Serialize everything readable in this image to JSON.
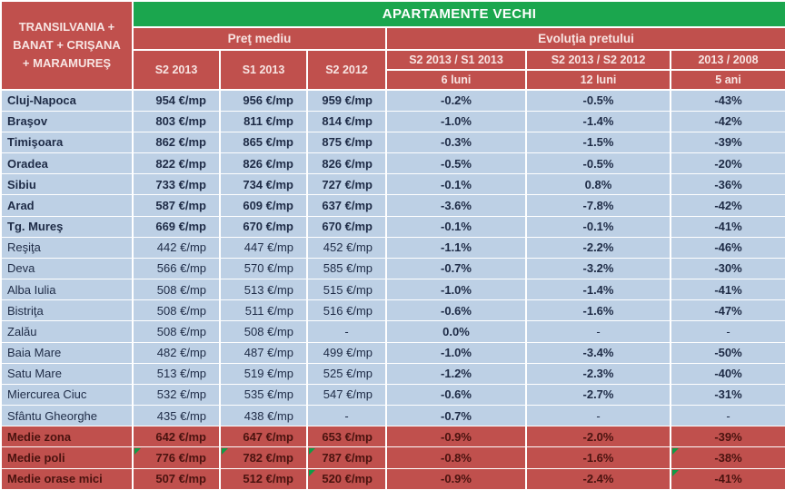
{
  "colors": {
    "header_red": "#C0504D",
    "title_green": "#1BA64E",
    "row_blue": "#BDD0E5",
    "summary_text": "#4A130F",
    "comment_indicator_green": "#0E9C46",
    "header_text": "#F7E5E3",
    "body_text": "#1E2B46"
  },
  "chart_data": {
    "type": "table",
    "title": "APARTAMENTE VECHI",
    "region_lines": [
      "TRANSILVANIA +",
      "BANAT + CRIŞANA",
      "+ MARAMUREŞ"
    ],
    "group_price": "Preţ mediu",
    "group_evolution": "Evoluţia pretului",
    "price_columns": [
      "S2 2013",
      "S1 2013",
      "S2 2012"
    ],
    "evolution_columns": [
      {
        "ratio": "S2 2013  / S1 2013",
        "period": "6 luni"
      },
      {
        "ratio": "S2 2013  / S2 2012",
        "period": "12 luni"
      },
      {
        "ratio": "2013  / 2008",
        "period": "5 ani"
      }
    ],
    "rows": [
      {
        "city": "Cluj-Napoca",
        "values": [
          "954 €/mp",
          "956 €/mp",
          "959 €/mp",
          "-0.2%",
          "-0.5%",
          "-43%"
        ],
        "style": "city-bold",
        "comment_marks": []
      },
      {
        "city": "Braşov",
        "values": [
          "803 €/mp",
          "811 €/mp",
          "814 €/mp",
          "-1.0%",
          "-1.4%",
          "-42%"
        ],
        "style": "city-bold",
        "comment_marks": []
      },
      {
        "city": "Timişoara",
        "values": [
          "862 €/mp",
          "865 €/mp",
          "875 €/mp",
          "-0.3%",
          "-1.5%",
          "-39%"
        ],
        "style": "city-bold",
        "comment_marks": []
      },
      {
        "city": "Oradea",
        "values": [
          "822 €/mp",
          "826 €/mp",
          "826 €/mp",
          "-0.5%",
          "-0.5%",
          "-20%"
        ],
        "style": "city-bold",
        "comment_marks": []
      },
      {
        "city": "Sibiu",
        "values": [
          "733 €/mp",
          "734 €/mp",
          "727 €/mp",
          "-0.1%",
          "0.8%",
          "-36%"
        ],
        "style": "city-bold",
        "comment_marks": []
      },
      {
        "city": "Arad",
        "values": [
          "587 €/mp",
          "609 €/mp",
          "637 €/mp",
          "-3.6%",
          "-7.8%",
          "-42%"
        ],
        "style": "city-bold",
        "comment_marks": []
      },
      {
        "city": "Tg. Mureş",
        "values": [
          "669 €/mp",
          "670 €/mp",
          "670 €/mp",
          "-0.1%",
          "-0.1%",
          "-41%"
        ],
        "style": "city-bold",
        "comment_marks": []
      },
      {
        "city": "Reşiţa",
        "values": [
          "442 €/mp",
          "447 €/mp",
          "452 €/mp",
          "-1.1%",
          "-2.2%",
          "-46%"
        ],
        "style": "city",
        "comment_marks": []
      },
      {
        "city": "Deva",
        "values": [
          "566 €/mp",
          "570 €/mp",
          "585 €/mp",
          "-0.7%",
          "-3.2%",
          "-30%"
        ],
        "style": "city",
        "comment_marks": []
      },
      {
        "city": "Alba Iulia",
        "values": [
          "508 €/mp",
          "513 €/mp",
          "515 €/mp",
          "-1.0%",
          "-1.4%",
          "-41%"
        ],
        "style": "city",
        "comment_marks": []
      },
      {
        "city": "Bistriţa",
        "values": [
          "508 €/mp",
          "511 €/mp",
          "516 €/mp",
          "-0.6%",
          "-1.6%",
          "-47%"
        ],
        "style": "city",
        "comment_marks": []
      },
      {
        "city": "Zalău",
        "values": [
          "508 €/mp",
          "508 €/mp",
          "-",
          "0.0%",
          "-",
          "-"
        ],
        "style": "city",
        "comment_marks": []
      },
      {
        "city": "Baia Mare",
        "values": [
          "482 €/mp",
          "487 €/mp",
          "499 €/mp",
          "-1.0%",
          "-3.4%",
          "-50%"
        ],
        "style": "city",
        "comment_marks": []
      },
      {
        "city": "Satu Mare",
        "values": [
          "513 €/mp",
          "519 €/mp",
          "525 €/mp",
          "-1.2%",
          "-2.3%",
          "-40%"
        ],
        "style": "city",
        "comment_marks": []
      },
      {
        "city": "Miercurea Ciuc",
        "values": [
          "532 €/mp",
          "535 €/mp",
          "547 €/mp",
          "-0.6%",
          "-2.7%",
          "-31%"
        ],
        "style": "city",
        "comment_marks": []
      },
      {
        "city": "Sfântu Gheorghe",
        "values": [
          "435 €/mp",
          "438 €/mp",
          "-",
          "-0.7%",
          "-",
          "-"
        ],
        "style": "city",
        "comment_marks": []
      },
      {
        "city": "Medie zona",
        "values": [
          "642 €/mp",
          "647 €/mp",
          "653 €/mp",
          "-0.9%",
          "-2.0%",
          "-39%"
        ],
        "style": "summary",
        "comment_marks": []
      },
      {
        "city": "Medie poli",
        "values": [
          "776 €/mp",
          "782 €/mp",
          "787 €/mp",
          "-0.8%",
          "-1.6%",
          "-38%"
        ],
        "style": "summary",
        "comment_marks": [
          0,
          1,
          2,
          5
        ]
      },
      {
        "city": "Medie orase mici",
        "values": [
          "507 €/mp",
          "512 €/mp",
          "520 €/mp",
          "-0.9%",
          "-2.4%",
          "-41%"
        ],
        "style": "summary",
        "comment_marks": [
          2,
          5
        ]
      }
    ]
  }
}
